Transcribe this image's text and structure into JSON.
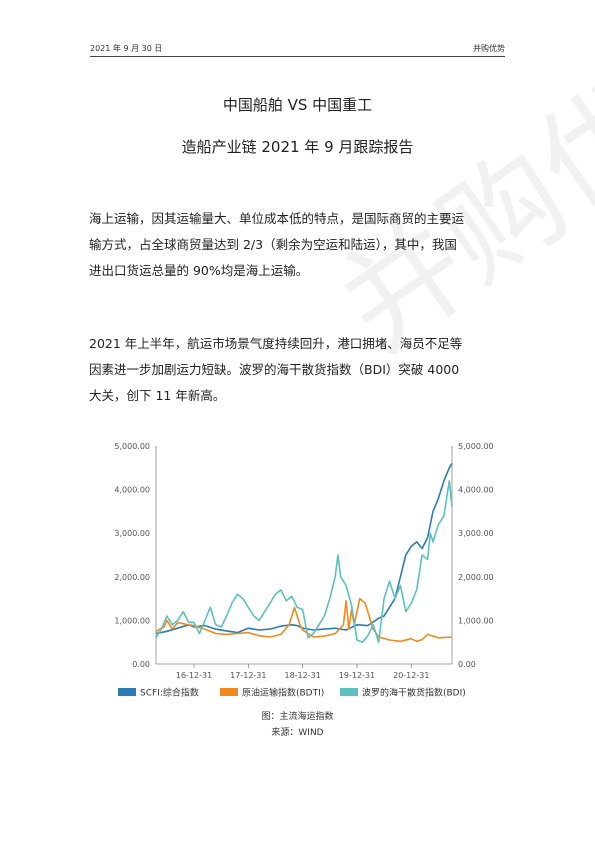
{
  "header": {
    "date": "2021 年 9 月 30 日",
    "brand": "并购优势"
  },
  "title": {
    "line1": "中国船舶 VS 中国重工",
    "line2": "造船产业链 2021 年 9 月跟踪报告"
  },
  "paragraphs": [
    {
      "lines": [
        "海上运输，因其运输量大、单位成本低的特点，是国际商贸的主要运",
        "输方式，占全球商贸量达到 2/3（剩余为空运和陆运），其中，我国",
        "进出口货运总量的 90%均是海上运输。"
      ]
    },
    {
      "lines": [
        "2021 年上半年，航运市场景气度持续回升，港口拥堵、海员不足等",
        "因素进一步加剧运力短缺。波罗的海干散货指数（BDI）突破 4000",
        "大关，创下 11 年新高。"
      ]
    }
  ],
  "watermark": "并购优势",
  "chart_data": {
    "type": "line",
    "x_ticks": [
      "16-12-31",
      "17-12-31",
      "18-12-31",
      "19-12-31",
      "20-12-31"
    ],
    "y_left": {
      "ticks": [
        "0.00",
        "1,000.00",
        "2,000.00",
        "3,000.00",
        "4,000.00",
        "5,000.00"
      ],
      "lim": [
        0,
        5000
      ]
    },
    "y_right": {
      "ticks": [
        "0.00",
        "1,000.00",
        "2,000.00",
        "3,000.00",
        "4,000.00",
        "5,000.00"
      ],
      "lim": [
        0,
        5000
      ]
    },
    "x_range": [
      2016.3,
      2021.75
    ],
    "x_tick_values": [
      2017.0,
      2018.0,
      2019.0,
      2020.0,
      2021.0
    ],
    "series": [
      {
        "name": "SCFI:综合指数",
        "color": "#2b7bb4",
        "points": [
          [
            2016.3,
            700
          ],
          [
            2016.5,
            750
          ],
          [
            2016.7,
            820
          ],
          [
            2016.9,
            900
          ],
          [
            2017.0,
            850
          ],
          [
            2017.2,
            880
          ],
          [
            2017.4,
            800
          ],
          [
            2017.6,
            760
          ],
          [
            2017.8,
            720
          ],
          [
            2018.0,
            820
          ],
          [
            2018.2,
            780
          ],
          [
            2018.4,
            800
          ],
          [
            2018.6,
            870
          ],
          [
            2018.8,
            900
          ],
          [
            2018.9,
            880
          ],
          [
            2019.0,
            820
          ],
          [
            2019.2,
            780
          ],
          [
            2019.4,
            800
          ],
          [
            2019.6,
            820
          ],
          [
            2019.8,
            780
          ],
          [
            2020.0,
            900
          ],
          [
            2020.2,
            880
          ],
          [
            2020.4,
            1050
          ],
          [
            2020.5,
            1100
          ],
          [
            2020.6,
            1300
          ],
          [
            2020.7,
            1500
          ],
          [
            2020.8,
            2000
          ],
          [
            2020.9,
            2500
          ],
          [
            2021.0,
            2700
          ],
          [
            2021.1,
            2800
          ],
          [
            2021.2,
            2650
          ],
          [
            2021.3,
            2900
          ],
          [
            2021.4,
            3500
          ],
          [
            2021.5,
            3800
          ],
          [
            2021.6,
            4200
          ],
          [
            2021.7,
            4500
          ],
          [
            2021.75,
            4600
          ]
        ]
      },
      {
        "name": "原油运输指数(BDTI)",
        "color": "#f08a1c",
        "points": [
          [
            2016.3,
            750
          ],
          [
            2016.45,
            850
          ],
          [
            2016.5,
            1000
          ],
          [
            2016.6,
            800
          ],
          [
            2016.7,
            950
          ],
          [
            2016.9,
            900
          ],
          [
            2017.0,
            880
          ],
          [
            2017.2,
            800
          ],
          [
            2017.4,
            700
          ],
          [
            2017.6,
            680
          ],
          [
            2017.8,
            700
          ],
          [
            2018.0,
            720
          ],
          [
            2018.2,
            650
          ],
          [
            2018.4,
            620
          ],
          [
            2018.6,
            680
          ],
          [
            2018.75,
            900
          ],
          [
            2018.85,
            1300
          ],
          [
            2018.95,
            900
          ],
          [
            2019.0,
            780
          ],
          [
            2019.2,
            620
          ],
          [
            2019.4,
            640
          ],
          [
            2019.6,
            700
          ],
          [
            2019.75,
            900
          ],
          [
            2019.8,
            1450
          ],
          [
            2019.85,
            800
          ],
          [
            2019.9,
            1250
          ],
          [
            2019.95,
            900
          ],
          [
            2020.05,
            1500
          ],
          [
            2020.15,
            1400
          ],
          [
            2020.3,
            800
          ],
          [
            2020.4,
            620
          ],
          [
            2020.6,
            550
          ],
          [
            2020.8,
            520
          ],
          [
            2021.0,
            580
          ],
          [
            2021.1,
            520
          ],
          [
            2021.2,
            560
          ],
          [
            2021.3,
            680
          ],
          [
            2021.5,
            600
          ],
          [
            2021.75,
            620
          ]
        ]
      },
      {
        "name": "波罗的海干散货指数(BDI)",
        "color": "#5bc0c0",
        "points": [
          [
            2016.3,
            600
          ],
          [
            2016.4,
            800
          ],
          [
            2016.5,
            1100
          ],
          [
            2016.6,
            900
          ],
          [
            2016.7,
            1000
          ],
          [
            2016.8,
            1200
          ],
          [
            2016.9,
            960
          ],
          [
            2017.0,
            950
          ],
          [
            2017.1,
            700
          ],
          [
            2017.2,
            1000
          ],
          [
            2017.3,
            1300
          ],
          [
            2017.4,
            900
          ],
          [
            2017.5,
            850
          ],
          [
            2017.6,
            1100
          ],
          [
            2017.7,
            1400
          ],
          [
            2017.8,
            1600
          ],
          [
            2017.9,
            1500
          ],
          [
            2018.0,
            1300
          ],
          [
            2018.1,
            1100
          ],
          [
            2018.2,
            1000
          ],
          [
            2018.3,
            1200
          ],
          [
            2018.4,
            1400
          ],
          [
            2018.5,
            1600
          ],
          [
            2018.6,
            1700
          ],
          [
            2018.7,
            1450
          ],
          [
            2018.8,
            1550
          ],
          [
            2018.9,
            1300
          ],
          [
            2019.0,
            1250
          ],
          [
            2019.1,
            600
          ],
          [
            2019.2,
            700
          ],
          [
            2019.3,
            900
          ],
          [
            2019.4,
            1100
          ],
          [
            2019.5,
            1500
          ],
          [
            2019.6,
            2000
          ],
          [
            2019.65,
            2500
          ],
          [
            2019.7,
            2000
          ],
          [
            2019.8,
            1800
          ],
          [
            2019.9,
            1350
          ],
          [
            2020.0,
            550
          ],
          [
            2020.1,
            500
          ],
          [
            2020.2,
            650
          ],
          [
            2020.3,
            900
          ],
          [
            2020.4,
            500
          ],
          [
            2020.5,
            1500
          ],
          [
            2020.6,
            1900
          ],
          [
            2020.7,
            1500
          ],
          [
            2020.8,
            1800
          ],
          [
            2020.9,
            1200
          ],
          [
            2021.0,
            1400
          ],
          [
            2021.1,
            1700
          ],
          [
            2021.2,
            2500
          ],
          [
            2021.3,
            2400
          ],
          [
            2021.35,
            3000
          ],
          [
            2021.4,
            2800
          ],
          [
            2021.5,
            3200
          ],
          [
            2021.6,
            3400
          ],
          [
            2021.65,
            3800
          ],
          [
            2021.7,
            4200
          ],
          [
            2021.75,
            3600
          ]
        ]
      }
    ]
  },
  "caption": {
    "figure": "图：主流海运指数",
    "source": "来源：WIND"
  }
}
